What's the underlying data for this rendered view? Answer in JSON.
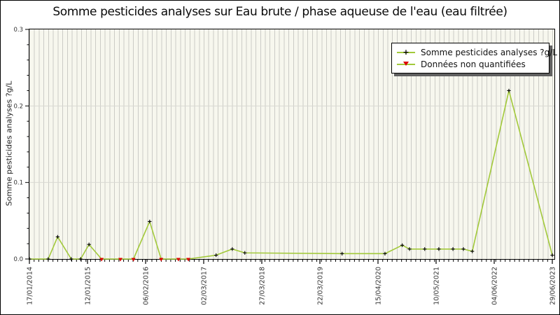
{
  "title": "Somme pesticides analyses sur Eau brute / phase aqueuse de l'eau (eau filtrée)",
  "colors": {
    "line_green": "#a2c93a",
    "marker_black": "#000000",
    "nonquantified_red": "#dd0000",
    "plot_background": "#f7f7ee",
    "stripe_gray": "#cbcbc6",
    "hgrid_gray": "#d9d9d2",
    "legend_shadow": "#606060"
  },
  "chart_data": {
    "type": "line",
    "title": "Somme pesticides analyses sur Eau brute / phase aqueuse de l'eau (eau filtrée)",
    "xlabel": "",
    "ylabel": "Somme pesticides analyses ?g/L",
    "ylim": [
      0,
      0.3
    ],
    "ytick_labels": [
      "0.0",
      "0.1",
      "0.2",
      "0.3"
    ],
    "y_minor_step": 0.02,
    "xtick_labels": [
      "17/01/2014",
      "12/01/2015",
      "06/02/2016",
      "02/03/2017",
      "27/03/2018",
      "22/03/2019",
      "15/04/2020",
      "10/05/2021",
      "04/06/2022",
      "29/06/2023"
    ],
    "x_minor_gridlines": "monthly vertical stripes",
    "grid": "horizontal lines at 0.1 and 0.2",
    "legend_position": "upper right",
    "series": [
      {
        "name": "Somme pesticides analyses ?g/L",
        "color": "#a2c93a",
        "marker": "plus",
        "points": [
          {
            "x_frac": 0.0,
            "approx_date": "17/01/2014",
            "value": 0.0
          },
          {
            "x_frac": 0.036,
            "approx_date": "05/2014",
            "value": 0.0
          },
          {
            "x_frac": 0.054,
            "approx_date": "07/2014",
            "value": 0.029
          },
          {
            "x_frac": 0.08,
            "approx_date": "10/2014",
            "value": 0.0
          },
          {
            "x_frac": 0.098,
            "approx_date": "12/2014",
            "value": 0.0
          },
          {
            "x_frac": 0.114,
            "approx_date": "02/2015",
            "value": 0.019
          },
          {
            "x_frac": 0.138,
            "approx_date": "05/2015",
            "value": 0.0,
            "quantified": false
          },
          {
            "x_frac": 0.174,
            "approx_date": "09/2015",
            "value": 0.0,
            "quantified": false
          },
          {
            "x_frac": 0.199,
            "approx_date": "12/2015",
            "value": 0.0,
            "quantified": false
          },
          {
            "x_frac": 0.23,
            "approx_date": "03/2016",
            "value": 0.049
          },
          {
            "x_frac": 0.252,
            "approx_date": "06/2016",
            "value": 0.0,
            "quantified": false
          },
          {
            "x_frac": 0.285,
            "approx_date": "09/2016",
            "value": 0.0,
            "quantified": false
          },
          {
            "x_frac": 0.304,
            "approx_date": "12/2016",
            "value": 0.0,
            "quantified": false
          },
          {
            "x_frac": 0.357,
            "approx_date": "06/2017",
            "value": 0.005
          },
          {
            "x_frac": 0.388,
            "approx_date": "09/2017",
            "value": 0.013
          },
          {
            "x_frac": 0.412,
            "approx_date": "12/2017",
            "value": 0.008
          },
          {
            "x_frac": 0.598,
            "approx_date": "09/2019",
            "value": 0.007
          },
          {
            "x_frac": 0.68,
            "approx_date": "06/2020",
            "value": 0.007
          },
          {
            "x_frac": 0.713,
            "approx_date": "10/2020",
            "value": 0.018
          },
          {
            "x_frac": 0.727,
            "approx_date": "12/2020",
            "value": 0.013
          },
          {
            "x_frac": 0.756,
            "approx_date": "03/2021",
            "value": 0.013
          },
          {
            "x_frac": 0.783,
            "approx_date": "06/2021",
            "value": 0.013
          },
          {
            "x_frac": 0.81,
            "approx_date": "09/2021",
            "value": 0.013
          },
          {
            "x_frac": 0.83,
            "approx_date": "11/2021",
            "value": 0.013
          },
          {
            "x_frac": 0.847,
            "approx_date": "01/2022",
            "value": 0.01
          },
          {
            "x_frac": 0.917,
            "approx_date": "09/2022",
            "value": 0.22
          },
          {
            "x_frac": 1.0,
            "approx_date": "29/06/2023",
            "value": 0.005
          }
        ]
      },
      {
        "name": "Données non quantifiées",
        "color": "#dd0000",
        "marker": "triangle-down",
        "points": [
          {
            "x_frac": 0.138,
            "approx_date": "05/2015",
            "value": 0.0
          },
          {
            "x_frac": 0.174,
            "approx_date": "09/2015",
            "value": 0.0
          },
          {
            "x_frac": 0.199,
            "approx_date": "12/2015",
            "value": 0.0
          },
          {
            "x_frac": 0.252,
            "approx_date": "06/2016",
            "value": 0.0
          },
          {
            "x_frac": 0.285,
            "approx_date": "09/2016",
            "value": 0.0
          },
          {
            "x_frac": 0.304,
            "approx_date": "12/2016",
            "value": 0.0
          }
        ]
      }
    ]
  }
}
